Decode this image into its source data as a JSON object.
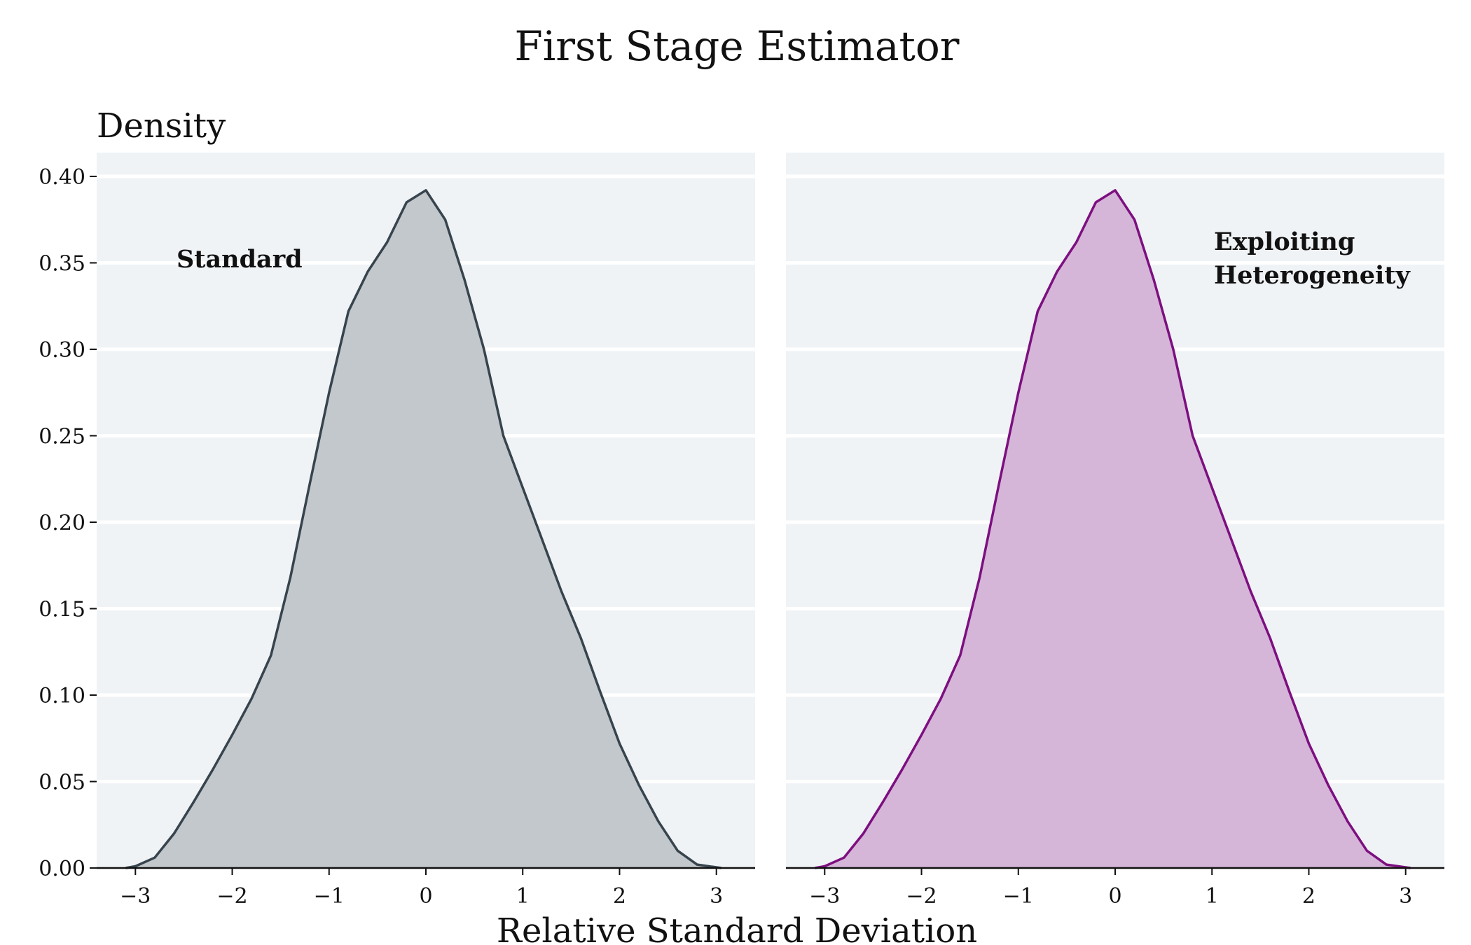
{
  "chart_data": {
    "type": "area",
    "title": "First Stage Estimator",
    "ylabel": "Density",
    "xlabel": "Relative Standard Deviation",
    "ylim": [
      0,
      0.4
    ],
    "yticks": [
      0.0,
      0.05,
      0.1,
      0.15,
      0.2,
      0.25,
      0.3,
      0.35,
      0.4
    ],
    "ytick_labels": [
      "0.00",
      "0.05",
      "0.10",
      "0.15",
      "0.20",
      "0.25",
      "0.30",
      "0.35",
      "0.40"
    ],
    "xlim": [
      -3.4,
      3.4
    ],
    "xticks": [
      -3,
      -2,
      -1,
      0,
      1,
      2,
      3
    ],
    "xtick_labels": [
      "−3",
      "−2",
      "−1",
      "0",
      "1",
      "2",
      "3"
    ],
    "grid": true,
    "panels": [
      {
        "annotation": [
          "Standard"
        ],
        "line_color": "#37444d",
        "fill_color": "#c3c8cc",
        "x": [
          -3.1,
          -3.0,
          -2.8,
          -2.6,
          -2.4,
          -2.2,
          -2.0,
          -1.8,
          -1.6,
          -1.4,
          -1.2,
          -1.0,
          -0.8,
          -0.6,
          -0.4,
          -0.2,
          0.0,
          0.2,
          0.4,
          0.6,
          0.8,
          1.0,
          1.2,
          1.4,
          1.6,
          1.8,
          2.0,
          2.2,
          2.4,
          2.6,
          2.8,
          3.05
        ],
        "y": [
          0.0,
          0.001,
          0.006,
          0.02,
          0.038,
          0.057,
          0.077,
          0.098,
          0.123,
          0.168,
          0.222,
          0.275,
          0.322,
          0.345,
          0.362,
          0.385,
          0.392,
          0.375,
          0.34,
          0.3,
          0.25,
          0.22,
          0.19,
          0.16,
          0.133,
          0.102,
          0.072,
          0.048,
          0.027,
          0.01,
          0.002,
          0.0
        ]
      },
      {
        "annotation": [
          "Exploiting",
          "Heterogeneity"
        ],
        "line_color": "#7d0f80",
        "fill_color": "#d5b6d8",
        "x": [
          -3.1,
          -3.0,
          -2.8,
          -2.6,
          -2.4,
          -2.2,
          -2.0,
          -1.8,
          -1.6,
          -1.4,
          -1.2,
          -1.0,
          -0.8,
          -0.6,
          -0.4,
          -0.2,
          0.0,
          0.2,
          0.4,
          0.6,
          0.8,
          1.0,
          1.2,
          1.4,
          1.6,
          1.8,
          2.0,
          2.2,
          2.4,
          2.6,
          2.8,
          3.05
        ],
        "y": [
          0.0,
          0.001,
          0.006,
          0.02,
          0.038,
          0.057,
          0.077,
          0.098,
          0.123,
          0.168,
          0.222,
          0.275,
          0.322,
          0.345,
          0.362,
          0.385,
          0.392,
          0.375,
          0.34,
          0.3,
          0.25,
          0.22,
          0.19,
          0.16,
          0.133,
          0.102,
          0.072,
          0.048,
          0.027,
          0.01,
          0.002,
          0.0
        ]
      }
    ]
  }
}
